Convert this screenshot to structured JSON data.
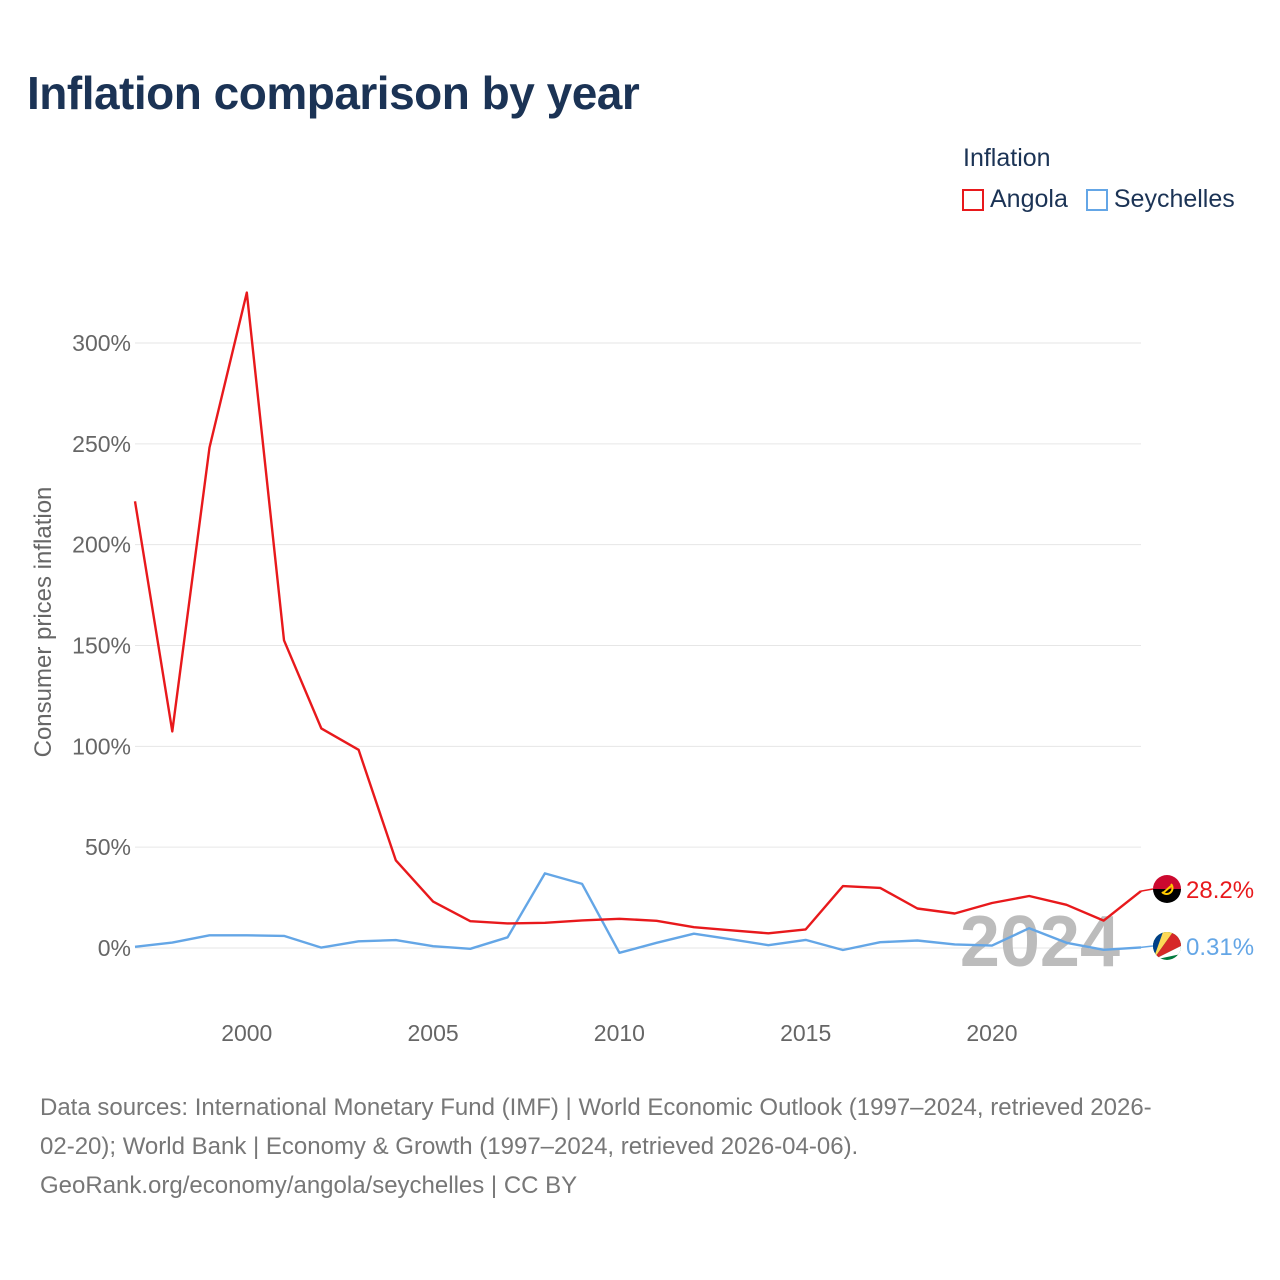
{
  "title": "Inflation comparison by year",
  "legend": {
    "title": "Inflation",
    "items": [
      {
        "label": "Angola",
        "color": "#e8191c"
      },
      {
        "label": "Seychelles",
        "color": "#64a6e6"
      }
    ]
  },
  "watermark_year": "2024",
  "end_labels": {
    "angola": "28.2%",
    "seychelles": "0.31%"
  },
  "footer": {
    "line1": "Data sources: International Monetary Fund (IMF) | World Economic Outlook (1997–2024, retrieved 2026-",
    "line2": "02-20); World Bank | Economy & Growth (1997–2024, retrieved 2026-04-06).",
    "line3": "GeoRank.org/economy/angola/seychelles | CC BY"
  },
  "chart_data": {
    "type": "line",
    "title": "Inflation comparison by year",
    "xlabel": "",
    "ylabel": "Consumer prices inflation",
    "xlim": [
      1997,
      2024
    ],
    "ylim": [
      -25,
      335
    ],
    "yticks": [
      0,
      50,
      100,
      150,
      200,
      250,
      300
    ],
    "ytick_labels": [
      "0%",
      "50%",
      "100%",
      "150%",
      "200%",
      "250%",
      "300%"
    ],
    "xticks": [
      2000,
      2005,
      2010,
      2015,
      2020
    ],
    "xtick_labels": [
      "2000",
      "2005",
      "2010",
      "2015",
      "2020"
    ],
    "x": [
      1997,
      1998,
      1999,
      2000,
      2001,
      2002,
      2003,
      2004,
      2005,
      2006,
      2007,
      2008,
      2009,
      2010,
      2011,
      2012,
      2013,
      2014,
      2015,
      2016,
      2017,
      2018,
      2019,
      2020,
      2021,
      2022,
      2023,
      2024
    ],
    "series": [
      {
        "name": "Angola",
        "color": "#e8191c",
        "values": [
          221.5,
          107.4,
          248.2,
          325.0,
          152.6,
          108.9,
          98.3,
          43.5,
          23.0,
          13.3,
          12.2,
          12.5,
          13.7,
          14.5,
          13.5,
          10.3,
          8.8,
          7.3,
          9.2,
          30.7,
          29.8,
          19.6,
          17.1,
          22.3,
          25.8,
          21.4,
          13.6,
          28.2
        ]
      },
      {
        "name": "Seychelles",
        "color": "#64a6e6",
        "values": [
          0.6,
          2.7,
          6.3,
          6.3,
          6.0,
          0.2,
          3.3,
          3.9,
          0.9,
          -0.4,
          5.3,
          37.0,
          31.8,
          -2.4,
          2.6,
          7.1,
          4.3,
          1.4,
          4.0,
          -1.0,
          2.9,
          3.7,
          1.8,
          1.2,
          9.8,
          2.6,
          -0.9,
          0.31
        ]
      }
    ]
  }
}
